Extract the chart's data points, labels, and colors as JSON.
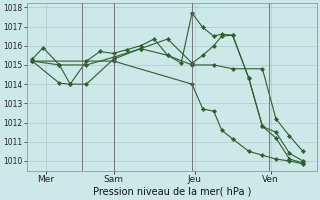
{
  "xlabel": "Pression niveau de la mer( hPa )",
  "bg_color": "#cce8e8",
  "line_color": "#2d5e2d",
  "grid_color": "#b0c8c8",
  "ylim": [
    1009.5,
    1018.2
  ],
  "xlim": [
    -0.2,
    10.5
  ],
  "xtick_labels": [
    "Mer",
    "Sam",
    "Jeu",
    "Ven"
  ],
  "xtick_pos": [
    0.5,
    3.0,
    6.0,
    8.8
  ],
  "ytick_vals": [
    1010,
    1011,
    1012,
    1013,
    1014,
    1015,
    1016,
    1017,
    1018
  ],
  "line1": {
    "x": [
      0,
      0.4,
      1.0,
      1.4,
      2.0,
      2.5,
      3.0,
      3.5,
      4.0,
      4.5,
      5.0,
      5.5,
      5.9,
      6.3,
      6.7,
      7.0,
      7.4,
      8.0,
      8.5,
      9.0,
      9.5,
      10.0
    ],
    "y": [
      1015.3,
      1015.9,
      1015.0,
      1014.0,
      1015.2,
      1015.7,
      1015.6,
      1015.8,
      1016.0,
      1016.35,
      1015.5,
      1015.1,
      1017.7,
      1016.95,
      1016.5,
      1016.6,
      1016.55,
      1014.3,
      1011.8,
      1011.2,
      1010.1,
      1009.9
    ]
  },
  "line2": {
    "x": [
      0,
      1.0,
      2.0,
      3.0,
      4.0,
      5.0,
      5.9,
      6.7,
      7.4,
      8.5,
      9.0,
      9.5,
      10.0
    ],
    "y": [
      1015.2,
      1015.0,
      1015.0,
      1015.4,
      1015.85,
      1015.5,
      1015.0,
      1015.0,
      1014.8,
      1014.8,
      1012.2,
      1011.3,
      1010.5
    ]
  },
  "line3": {
    "x": [
      0,
      1.0,
      1.4,
      2.0,
      3.0,
      4.0,
      5.0,
      5.9,
      6.3,
      6.7,
      7.0,
      7.4,
      8.0,
      8.5,
      9.0,
      9.5,
      10.0
    ],
    "y": [
      1015.2,
      1014.05,
      1014.0,
      1014.0,
      1015.3,
      1015.85,
      1016.35,
      1015.1,
      1015.5,
      1016.0,
      1016.5,
      1016.55,
      1014.3,
      1011.8,
      1011.5,
      1010.4,
      1010.0
    ]
  },
  "line4": {
    "x": [
      0,
      3.0,
      5.9,
      6.3,
      6.7,
      7.0,
      7.4,
      8.0,
      8.5,
      9.0,
      9.5,
      10.0
    ],
    "y": [
      1015.2,
      1015.2,
      1014.0,
      1012.7,
      1012.6,
      1011.6,
      1011.15,
      1010.5,
      1010.3,
      1010.1,
      1010.0,
      1009.85
    ]
  },
  "vline_positions": [
    1.85,
    3.0,
    5.9,
    8.75
  ],
  "marker": "D",
  "marker_size": 2.2,
  "lw": 0.8,
  "xlabel_fontsize": 7.0,
  "ytick_fontsize": 5.5,
  "xtick_fontsize": 6.5
}
